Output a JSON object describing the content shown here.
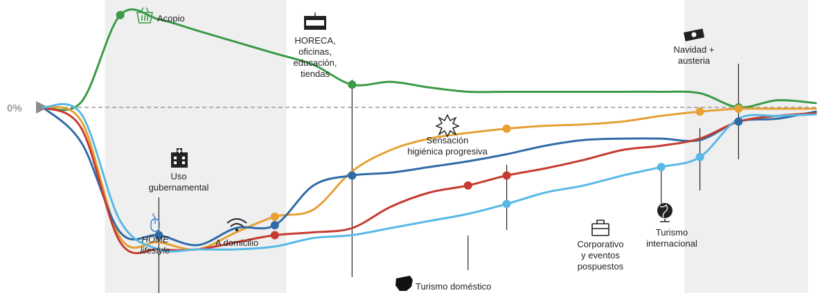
{
  "chart_data": {
    "type": "line",
    "title": "",
    "xlabel": "",
    "ylabel": "",
    "zero_label": "0%",
    "grid": false,
    "legend": "none",
    "x": [
      0,
      1,
      2,
      3,
      4,
      5,
      6,
      7,
      8,
      9,
      10,
      11,
      12,
      13,
      14,
      15,
      16,
      17,
      18,
      19,
      20
    ],
    "shaded_bands": [
      [
        1.6,
        6.3
      ],
      [
        16.6,
        19.8
      ]
    ],
    "series": [
      {
        "name": "Acopio",
        "color": "#3a9a45",
        "values": [
          0,
          4,
          65,
          62,
          54,
          46,
          38,
          30,
          16,
          18,
          14,
          11,
          11,
          11,
          11,
          11,
          11,
          10,
          0,
          5,
          3
        ]
      },
      {
        "name": "",
        "color": "#e6a033",
        "values": [
          0,
          -10,
          -92,
          -95,
          -100,
          -88,
          -77,
          -72,
          -45,
          -30,
          -22,
          -18,
          -15,
          -13,
          -12,
          -10,
          -6,
          -3,
          -1,
          -1,
          -1
        ]
      },
      {
        "name": "",
        "color": "#2f6ba8",
        "values": [
          0,
          -25,
          -88,
          -90,
          -97,
          -85,
          -83,
          -55,
          -48,
          -46,
          -42,
          -38,
          -33,
          -27,
          -23,
          -22,
          -22,
          -23,
          -10,
          -8,
          -3
        ]
      },
      {
        "name": "Turismo doméstico",
        "color": "#c63a2f",
        "values": [
          0,
          -15,
          -95,
          -100,
          -100,
          -95,
          -90,
          -88,
          -85,
          -70,
          -60,
          -55,
          -48,
          -43,
          -37,
          -30,
          -27,
          -22,
          -10,
          -6,
          -4
        ]
      },
      {
        "name": "",
        "color": "#57b8e6",
        "values": [
          0,
          -5,
          -80,
          -100,
          -100,
          -100,
          -98,
          -92,
          -90,
          -85,
          -80,
          -75,
          -68,
          -60,
          -55,
          -48,
          -42,
          -35,
          -8,
          -6,
          -5
        ]
      }
    ],
    "annotations": [
      {
        "icon": "basket-icon",
        "label": "Acopio",
        "color": "#3a9a45"
      },
      {
        "icon": "open-sign-icon",
        "label": "HORECA,\noficinas,\neducación,\ntiendas",
        "color": "#222222"
      },
      {
        "icon": "money-icon",
        "label": "Navidad +\nausteria",
        "color": "#222222"
      },
      {
        "icon": "hospital-icon",
        "label": "Uso\ngubernamental",
        "color": "#222222"
      },
      {
        "icon": "mouse-icon",
        "label": "HOME\nlifestyle",
        "color": "#3a86c8",
        "italic": true
      },
      {
        "icon": "wifi-icon",
        "label": "A domicilio",
        "color": "#222222"
      },
      {
        "icon": "sparkle-icon",
        "label": "Sensación\nhigiénica progresiva",
        "color": "#222222"
      },
      {
        "icon": "spain-map-icon",
        "label": "Turismo doméstico",
        "color": "#c63a2f"
      },
      {
        "icon": "briefcase-icon",
        "label": "Corporativo\ny eventos\npospuestos",
        "color": "#222222"
      },
      {
        "icon": "globe-icon",
        "label": "Turismo\ninternacional",
        "color": "#222222"
      }
    ]
  }
}
